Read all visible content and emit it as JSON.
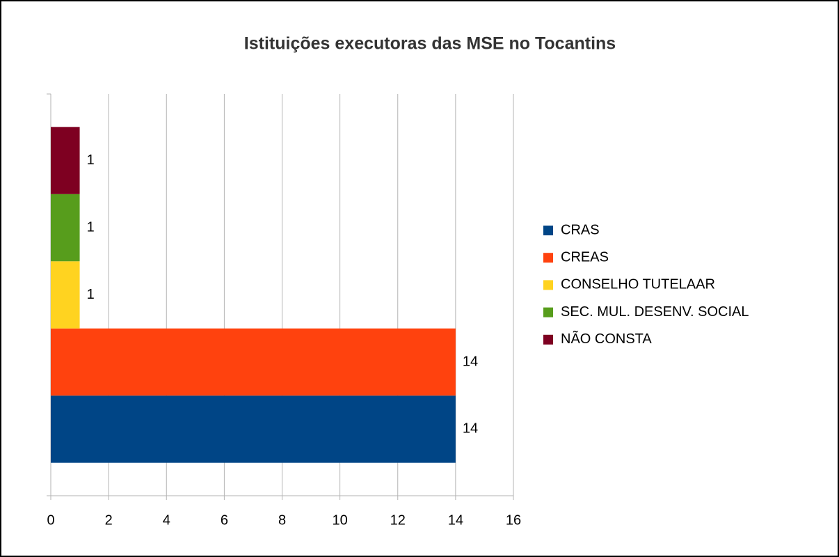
{
  "chart_data": {
    "type": "bar",
    "orientation": "horizontal",
    "title": "Istituições executoras das MSE no Tocantins",
    "categories": [
      null
    ],
    "series": [
      {
        "name": "CRAS",
        "color": "#004586",
        "values": [
          14
        ]
      },
      {
        "name": "CREAS",
        "color": "#ff420e",
        "values": [
          14
        ]
      },
      {
        "name": "CONSELHO TUTELAAR",
        "color": "#ffd320",
        "values": [
          1
        ]
      },
      {
        "name": "SEC. MUL. DESENV. SOCIAL",
        "color": "#579d1c",
        "values": [
          1
        ]
      },
      {
        "name": "NÃO CONSTA",
        "color": "#7e0021",
        "values": [
          1
        ]
      }
    ],
    "xlim": [
      0,
      16
    ],
    "xticks": [
      0,
      2,
      4,
      6,
      8,
      10,
      12,
      14,
      16
    ],
    "grid": true,
    "legend": "right",
    "data_labels": true
  }
}
